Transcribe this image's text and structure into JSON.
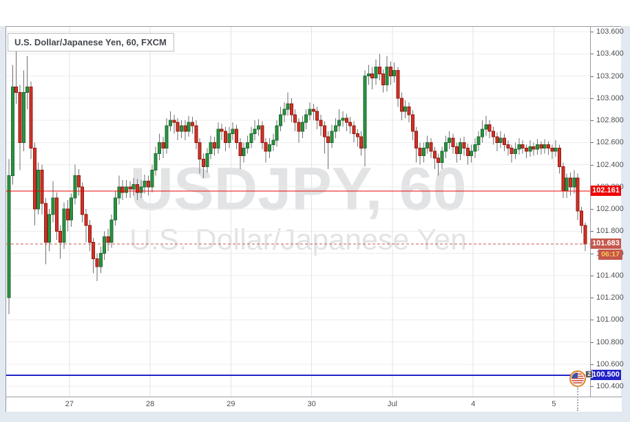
{
  "header": {
    "title": "U.S. Dollar/Japanese Yen, 60, FXCM"
  },
  "watermark": {
    "line1": "USDJPY, 60",
    "line2": "U.S. Dollar/Japanese Yen"
  },
  "colors": {
    "up_fill": "#2c9140",
    "up_border": "#1a6b30",
    "down_fill": "#cc342b",
    "down_border": "#991409",
    "wick": "#6f6f6f",
    "grid": "#ececef",
    "alert_line_red": "#ee0000",
    "current_price": "#c4574d",
    "countdown_text": "#ffc34f",
    "user_line_blue": "#2121c8",
    "axis_text": "#4c4e54"
  },
  "price_axis": {
    "labels": [
      "103.600",
      "103.400",
      "103.200",
      "103.000",
      "102.800",
      "102.600",
      "102.400",
      "102.200",
      "102.000",
      "101.800",
      "101.600",
      "101.400",
      "101.200",
      "101.000",
      "100.800",
      "100.600",
      "100.400"
    ],
    "max": 103.6,
    "min": 100.4,
    "step": 0.2
  },
  "time_axis": {
    "labels": [
      {
        "text": "27",
        "index": 16
      },
      {
        "text": "28",
        "index": 38
      },
      {
        "text": "29",
        "index": 60
      },
      {
        "text": "30",
        "index": 82
      },
      {
        "text": "Jul",
        "index": 104
      },
      {
        "text": "4",
        "index": 126
      },
      {
        "text": "5",
        "index": 148
      }
    ]
  },
  "levels": {
    "alert": {
      "price": 102.161,
      "label": "102.161",
      "style": "solid"
    },
    "current": {
      "price": 101.683,
      "label": "101.683",
      "countdown": "06:17",
      "style": "dashed"
    },
    "support": {
      "price": 100.5,
      "label": "100.500",
      "style": "solid"
    }
  },
  "event_marker": {
    "badge": "2",
    "country": "us-flag",
    "price": 100.5,
    "index": 155
  },
  "chart_data": {
    "type": "candlestick",
    "title": "U.S. Dollar/Japanese Yen, 60, FXCM",
    "symbol": "USDJPY",
    "interval": "60",
    "exchange": "FXCM",
    "ylim": [
      100.4,
      103.6
    ],
    "x_labels": [
      "27",
      "28",
      "29",
      "30",
      "Jul",
      "4",
      "5"
    ],
    "session_divider_indices": [
      16,
      38,
      60,
      82,
      104,
      126,
      148
    ],
    "ohlc": [
      [
        101.2,
        102.45,
        101.05,
        102.3
      ],
      [
        102.3,
        103.3,
        102.22,
        103.1
      ],
      [
        103.1,
        103.45,
        102.95,
        103.05
      ],
      [
        103.05,
        103.12,
        102.35,
        102.6
      ],
      [
        102.6,
        103.25,
        102.52,
        103.05
      ],
      [
        103.05,
        103.38,
        102.9,
        103.1
      ],
      [
        103.1,
        103.15,
        102.45,
        102.55
      ],
      [
        102.55,
        102.6,
        101.85,
        102.0
      ],
      [
        102.0,
        102.42,
        101.95,
        102.35
      ],
      [
        102.35,
        102.4,
        101.95,
        102.05
      ],
      [
        102.05,
        102.1,
        101.5,
        101.7
      ],
      [
        101.7,
        102.0,
        101.62,
        101.95
      ],
      [
        101.95,
        102.25,
        101.88,
        102.1
      ],
      [
        102.1,
        102.15,
        101.72,
        101.8
      ],
      [
        101.8,
        101.85,
        101.55,
        101.7
      ],
      [
        101.7,
        102.06,
        101.64,
        102.0
      ],
      [
        102.0,
        102.08,
        101.8,
        101.9
      ],
      [
        101.9,
        102.14,
        101.84,
        102.1
      ],
      [
        102.1,
        102.4,
        102.04,
        102.3
      ],
      [
        102.3,
        102.36,
        102.12,
        102.2
      ],
      [
        102.2,
        102.24,
        101.88,
        101.95
      ],
      [
        101.95,
        102.0,
        101.7,
        101.85
      ],
      [
        101.85,
        101.9,
        101.62,
        101.7
      ],
      [
        101.7,
        101.74,
        101.42,
        101.55
      ],
      [
        101.55,
        101.6,
        101.35,
        101.48
      ],
      [
        101.48,
        101.66,
        101.42,
        101.6
      ],
      [
        101.6,
        101.8,
        101.54,
        101.75
      ],
      [
        101.75,
        101.82,
        101.62,
        101.7
      ],
      [
        101.7,
        101.95,
        101.65,
        101.9
      ],
      [
        101.9,
        102.16,
        101.85,
        102.1
      ],
      [
        102.1,
        102.3,
        102.04,
        102.2
      ],
      [
        102.2,
        102.26,
        102.08,
        102.15
      ],
      [
        102.15,
        102.26,
        102.1,
        102.2
      ],
      [
        102.2,
        102.25,
        102.1,
        102.18
      ],
      [
        102.18,
        102.28,
        102.12,
        102.22
      ],
      [
        102.22,
        102.27,
        102.08,
        102.15
      ],
      [
        102.15,
        102.26,
        102.1,
        102.2
      ],
      [
        102.2,
        102.31,
        102.14,
        102.25
      ],
      [
        102.25,
        102.3,
        102.12,
        102.2
      ],
      [
        102.2,
        102.4,
        102.15,
        102.35
      ],
      [
        102.35,
        102.56,
        102.3,
        102.5
      ],
      [
        102.5,
        102.68,
        102.44,
        102.6
      ],
      [
        102.6,
        102.65,
        102.46,
        102.55
      ],
      [
        102.55,
        102.82,
        102.5,
        102.75
      ],
      [
        102.75,
        102.88,
        102.7,
        102.8
      ],
      [
        102.8,
        102.85,
        102.68,
        102.78
      ],
      [
        102.78,
        102.82,
        102.62,
        102.7
      ],
      [
        102.7,
        102.8,
        102.64,
        102.75
      ],
      [
        102.75,
        102.8,
        102.62,
        102.7
      ],
      [
        102.7,
        102.84,
        102.65,
        102.78
      ],
      [
        102.78,
        102.83,
        102.68,
        102.75
      ],
      [
        102.75,
        102.8,
        102.54,
        102.6
      ],
      [
        102.6,
        102.64,
        102.32,
        102.45
      ],
      [
        102.45,
        102.5,
        102.28,
        102.38
      ],
      [
        102.38,
        102.55,
        102.33,
        102.5
      ],
      [
        102.5,
        102.66,
        102.45,
        102.6
      ],
      [
        102.6,
        102.65,
        102.48,
        102.55
      ],
      [
        102.55,
        102.78,
        102.5,
        102.72
      ],
      [
        102.72,
        102.77,
        102.62,
        102.7
      ],
      [
        102.7,
        102.74,
        102.52,
        102.6
      ],
      [
        102.6,
        102.74,
        102.55,
        102.68
      ],
      [
        102.68,
        102.78,
        102.62,
        102.72
      ],
      [
        102.72,
        102.76,
        102.54,
        102.6
      ],
      [
        102.6,
        102.64,
        102.36,
        102.48
      ],
      [
        102.48,
        102.6,
        102.42,
        102.55
      ],
      [
        102.55,
        102.66,
        102.5,
        102.6
      ],
      [
        102.6,
        102.74,
        102.55,
        102.68
      ],
      [
        102.68,
        102.8,
        102.62,
        102.72
      ],
      [
        102.72,
        102.81,
        102.66,
        102.75
      ],
      [
        102.75,
        102.79,
        102.54,
        102.6
      ],
      [
        102.6,
        102.64,
        102.42,
        102.52
      ],
      [
        102.52,
        102.64,
        102.46,
        102.58
      ],
      [
        102.58,
        102.68,
        102.52,
        102.62
      ],
      [
        102.62,
        102.8,
        102.56,
        102.75
      ],
      [
        102.75,
        102.92,
        102.7,
        102.85
      ],
      [
        102.85,
        102.96,
        102.78,
        102.9
      ],
      [
        102.9,
        103.05,
        102.84,
        102.95
      ],
      [
        102.95,
        103.0,
        102.78,
        102.85
      ],
      [
        102.85,
        102.9,
        102.7,
        102.78
      ],
      [
        102.78,
        102.82,
        102.6,
        102.7
      ],
      [
        102.7,
        102.84,
        102.64,
        102.78
      ],
      [
        102.78,
        102.9,
        102.72,
        102.85
      ],
      [
        102.85,
        102.96,
        102.8,
        102.9
      ],
      [
        102.9,
        102.95,
        102.8,
        102.88
      ],
      [
        102.88,
        102.92,
        102.72,
        102.8
      ],
      [
        102.8,
        102.85,
        102.66,
        102.75
      ],
      [
        102.75,
        102.79,
        102.5,
        102.65
      ],
      [
        102.65,
        102.7,
        102.36,
        102.6
      ],
      [
        102.6,
        102.76,
        102.55,
        102.7
      ],
      [
        102.7,
        102.82,
        102.64,
        102.75
      ],
      [
        102.75,
        102.9,
        102.7,
        102.8
      ],
      [
        102.8,
        102.88,
        102.74,
        102.82
      ],
      [
        102.82,
        102.86,
        102.7,
        102.78
      ],
      [
        102.78,
        102.83,
        102.68,
        102.75
      ],
      [
        102.75,
        102.79,
        102.6,
        102.68
      ],
      [
        102.68,
        102.72,
        102.56,
        102.65
      ],
      [
        102.65,
        102.7,
        102.48,
        102.55
      ],
      [
        102.55,
        103.25,
        102.38,
        103.2
      ],
      [
        103.2,
        103.3,
        103.12,
        103.22
      ],
      [
        103.22,
        103.28,
        103.08,
        103.18
      ],
      [
        103.18,
        103.35,
        103.12,
        103.28
      ],
      [
        103.28,
        103.4,
        103.16,
        103.22
      ],
      [
        103.22,
        103.26,
        103.05,
        103.12
      ],
      [
        103.12,
        103.38,
        103.06,
        103.28
      ],
      [
        103.28,
        103.33,
        103.12,
        103.2
      ],
      [
        103.2,
        103.32,
        103.14,
        103.25
      ],
      [
        103.25,
        103.28,
        102.92,
        103.0
      ],
      [
        103.0,
        103.05,
        102.8,
        102.88
      ],
      [
        102.88,
        102.98,
        102.82,
        102.92
      ],
      [
        102.92,
        102.96,
        102.78,
        102.85
      ],
      [
        102.85,
        102.89,
        102.62,
        102.7
      ],
      [
        102.7,
        102.74,
        102.42,
        102.55
      ],
      [
        102.55,
        102.6,
        102.4,
        102.48
      ],
      [
        102.48,
        102.6,
        102.42,
        102.55
      ],
      [
        102.55,
        102.66,
        102.5,
        102.6
      ],
      [
        102.6,
        102.64,
        102.46,
        102.52
      ],
      [
        102.52,
        102.56,
        102.36,
        102.46
      ],
      [
        102.46,
        102.5,
        102.3,
        102.42
      ],
      [
        102.42,
        102.56,
        102.36,
        102.52
      ],
      [
        102.52,
        102.66,
        102.46,
        102.6
      ],
      [
        102.6,
        102.7,
        102.54,
        102.64
      ],
      [
        102.64,
        102.68,
        102.5,
        102.56
      ],
      [
        102.56,
        102.6,
        102.42,
        102.5
      ],
      [
        102.5,
        102.64,
        102.44,
        102.6
      ],
      [
        102.6,
        102.65,
        102.48,
        102.55
      ],
      [
        102.55,
        102.59,
        102.4,
        102.48
      ],
      [
        102.48,
        102.58,
        102.42,
        102.52
      ],
      [
        102.52,
        102.64,
        102.46,
        102.58
      ],
      [
        102.58,
        102.7,
        102.52,
        102.65
      ],
      [
        102.65,
        102.8,
        102.6,
        102.72
      ],
      [
        102.72,
        102.84,
        102.66,
        102.76
      ],
      [
        102.76,
        102.8,
        102.64,
        102.7
      ],
      [
        102.7,
        102.74,
        102.58,
        102.65
      ],
      [
        102.65,
        102.69,
        102.52,
        102.6
      ],
      [
        102.6,
        102.7,
        102.55,
        102.64
      ],
      [
        102.64,
        102.68,
        102.52,
        102.58
      ],
      [
        102.58,
        102.62,
        102.48,
        102.55
      ],
      [
        102.55,
        102.58,
        102.42,
        102.5
      ],
      [
        102.5,
        102.6,
        102.45,
        102.54
      ],
      [
        102.54,
        102.64,
        102.49,
        102.58
      ],
      [
        102.58,
        102.62,
        102.5,
        102.55
      ],
      [
        102.55,
        102.58,
        102.46,
        102.52
      ],
      [
        102.52,
        102.62,
        102.47,
        102.56
      ],
      [
        102.56,
        102.6,
        102.48,
        102.54
      ],
      [
        102.54,
        102.63,
        102.49,
        102.58
      ],
      [
        102.58,
        102.61,
        102.49,
        102.55
      ],
      [
        102.55,
        102.63,
        102.5,
        102.58
      ],
      [
        102.58,
        102.61,
        102.49,
        102.55
      ],
      [
        102.55,
        102.58,
        102.45,
        102.52
      ],
      [
        102.52,
        102.62,
        102.47,
        102.55
      ],
      [
        102.55,
        102.58,
        102.32,
        102.38
      ],
      [
        102.38,
        102.42,
        102.1,
        102.16
      ],
      [
        102.16,
        102.32,
        102.1,
        102.28
      ],
      [
        102.28,
        102.33,
        102.12,
        102.2
      ],
      [
        102.2,
        102.35,
        102.14,
        102.28
      ],
      [
        102.28,
        102.32,
        101.9,
        101.98
      ],
      [
        101.98,
        102.02,
        101.78,
        101.85
      ],
      [
        101.85,
        101.88,
        101.62,
        101.683
      ]
    ]
  }
}
